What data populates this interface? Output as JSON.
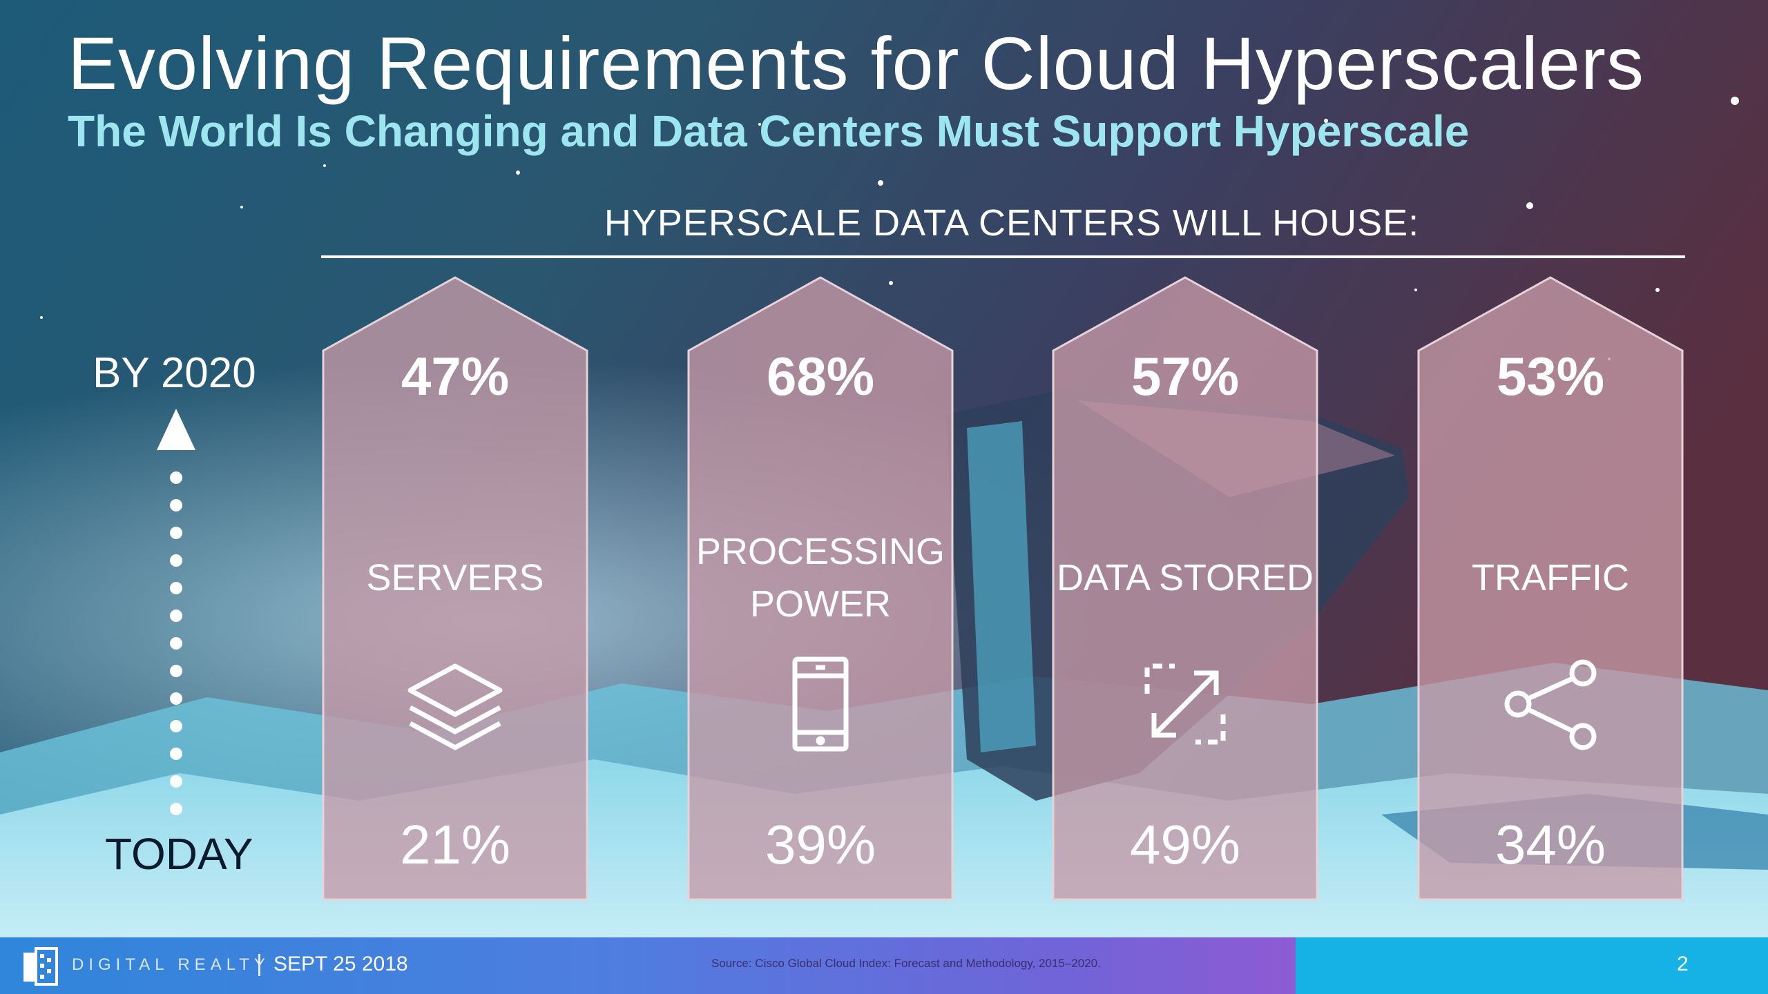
{
  "slide": {
    "title": "Evolving Requirements for Cloud Hyperscalers",
    "subtitle": "The World Is Changing and Data Centers Must Support Hyperscale"
  },
  "section": {
    "heading": "HYPERSCALE DATA CENTERS WILL HOUSE:"
  },
  "timeline": {
    "top_label": "BY 2020",
    "bottom_label": "TODAY"
  },
  "cards": [
    {
      "future_value": "47%",
      "label_line1": "SERVERS",
      "label_line2": "",
      "icon": "layers-icon",
      "today_value": "21%"
    },
    {
      "future_value": "68%",
      "label_line1": "PROCESSING",
      "label_line2": "POWER",
      "icon": "mobile-device-icon",
      "today_value": "39%"
    },
    {
      "future_value": "57%",
      "label_line1": "DATA STORED",
      "label_line2": "",
      "icon": "expand-arrows-icon",
      "today_value": "49%"
    },
    {
      "future_value": "53%",
      "label_line1": "TRAFFIC",
      "label_line2": "",
      "icon": "share-nodes-icon",
      "today_value": "34%"
    }
  ],
  "footer": {
    "brand": "DIGITAL REALTY",
    "date": "SEPT 25 2018",
    "source": "Source: Cisco Global Cloud Index: Forecast and Methodology, 2015–2020.",
    "page_number": "2"
  },
  "colors": {
    "card_fill": "#c79aa6",
    "subtitle": "#9ee6ef",
    "footer_right": "#16b2e6",
    "today_label": "#0b1a2c"
  }
}
